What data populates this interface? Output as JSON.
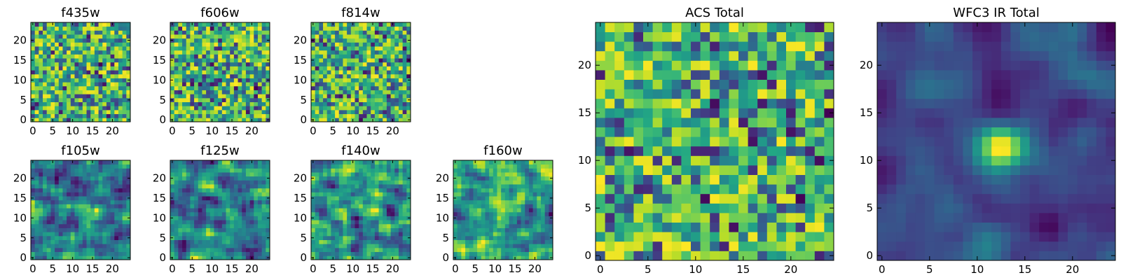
{
  "chart_data": [
    {
      "type": "heatmap",
      "title": "f435w",
      "grid": "25x25",
      "colormap": "viridis",
      "xticks": [
        "0",
        "5",
        "10",
        "15",
        "20"
      ],
      "yticks": [
        "0",
        "5",
        "10",
        "15",
        "20"
      ],
      "xlim": [
        -0.5,
        24.5
      ],
      "ylim": [
        -0.5,
        24.5
      ],
      "texture": "noise"
    },
    {
      "type": "heatmap",
      "title": "f606w",
      "grid": "25x25",
      "colormap": "viridis",
      "xticks": [
        "0",
        "5",
        "10",
        "15",
        "20"
      ],
      "yticks": [
        "0",
        "5",
        "10",
        "15",
        "20"
      ],
      "xlim": [
        -0.5,
        24.5
      ],
      "ylim": [
        -0.5,
        24.5
      ],
      "texture": "noise"
    },
    {
      "type": "heatmap",
      "title": "f814w",
      "grid": "25x25",
      "colormap": "viridis",
      "xticks": [
        "0",
        "5",
        "10",
        "15",
        "20"
      ],
      "yticks": [
        "0",
        "5",
        "10",
        "15",
        "20"
      ],
      "xlim": [
        -0.5,
        24.5
      ],
      "ylim": [
        -0.5,
        24.5
      ],
      "texture": "noise"
    },
    {
      "type": "heatmap",
      "title": "f105w",
      "grid": "25x25",
      "colormap": "viridis",
      "xticks": [
        "0",
        "5",
        "10",
        "15",
        "20"
      ],
      "yticks": [
        "0",
        "5",
        "10",
        "15",
        "20"
      ],
      "xlim": [
        -0.5,
        24.5
      ],
      "ylim": [
        -0.5,
        24.5
      ],
      "texture": "smooth"
    },
    {
      "type": "heatmap",
      "title": "f125w",
      "grid": "25x25",
      "colormap": "viridis",
      "xticks": [
        "0",
        "5",
        "10",
        "15",
        "20"
      ],
      "yticks": [
        "0",
        "5",
        "10",
        "15",
        "20"
      ],
      "xlim": [
        -0.5,
        24.5
      ],
      "ylim": [
        -0.5,
        24.5
      ],
      "texture": "smooth"
    },
    {
      "type": "heatmap",
      "title": "f140w",
      "grid": "25x25",
      "colormap": "viridis",
      "xticks": [
        "0",
        "5",
        "10",
        "15",
        "20"
      ],
      "yticks": [
        "0",
        "5",
        "10",
        "15",
        "20"
      ],
      "xlim": [
        -0.5,
        24.5
      ],
      "ylim": [
        -0.5,
        24.5
      ],
      "texture": "smooth"
    },
    {
      "type": "heatmap",
      "title": "f160w",
      "grid": "25x25",
      "colormap": "viridis",
      "xticks": [
        "0",
        "5",
        "10",
        "15",
        "20"
      ],
      "yticks": [
        "0",
        "5",
        "10",
        "15",
        "20"
      ],
      "xlim": [
        -0.5,
        24.5
      ],
      "ylim": [
        -0.5,
        24.5
      ],
      "texture": "smooth"
    },
    {
      "type": "heatmap",
      "title": "ACS Total",
      "grid": "25x25",
      "colormap": "viridis",
      "xticks": [
        "0",
        "5",
        "10",
        "15",
        "20"
      ],
      "yticks": [
        "0",
        "5",
        "10",
        "15",
        "20"
      ],
      "xlim": [
        -0.5,
        24.5
      ],
      "ylim": [
        -0.5,
        24.5
      ],
      "texture": "noise"
    },
    {
      "type": "heatmap",
      "title": "WFC3 IR Total",
      "grid": "25x25",
      "colormap": "viridis",
      "xticks": [
        "0",
        "5",
        "10",
        "15",
        "20"
      ],
      "yticks": [
        "0",
        "5",
        "10",
        "15",
        "20"
      ],
      "xlim": [
        -0.5,
        24.5
      ],
      "ylim": [
        -0.5,
        24.5
      ],
      "texture": "source",
      "bright_source_center": [
        12.5,
        11.5
      ]
    }
  ],
  "colors": {
    "viridis_low": "#440154",
    "viridis_mid_low": "#31688e",
    "viridis_mid": "#21918c",
    "viridis_mid_high": "#5ec962",
    "viridis_high": "#fde725"
  }
}
